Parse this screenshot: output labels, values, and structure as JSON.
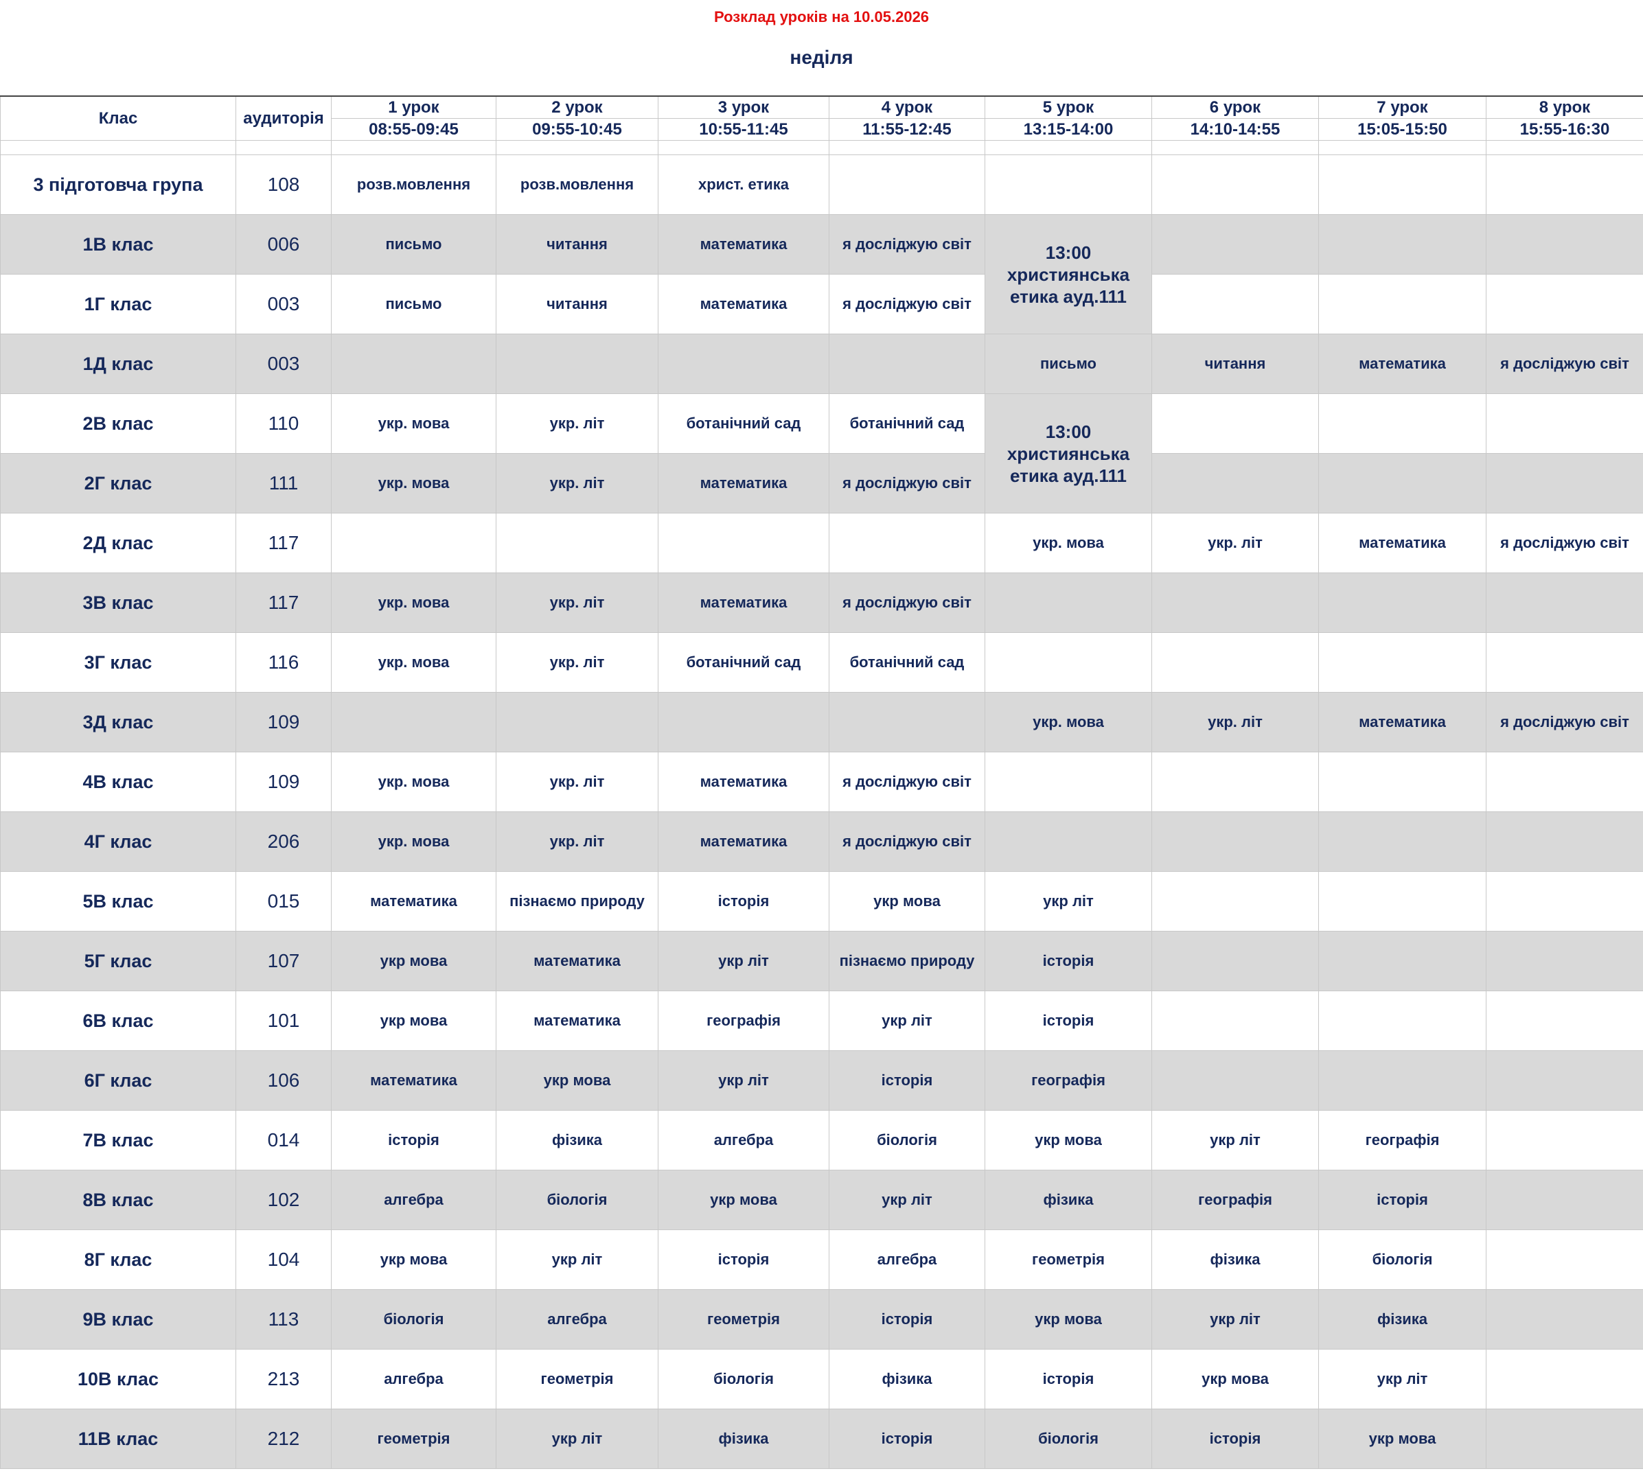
{
  "header": {
    "title": "Розклад уроків на 10.05.2026",
    "day": "неділя"
  },
  "table": {
    "class_header": "Клас",
    "room_header": "аудиторія",
    "columns": [
      {
        "name": "1 урок",
        "time": "08:55-09:45"
      },
      {
        "name": "2 урок",
        "time": "09:55-10:45"
      },
      {
        "name": "3 урок",
        "time": "10:55-11:45"
      },
      {
        "name": "4 урок",
        "time": "11:55-12:45"
      },
      {
        "name": "5 урок",
        "time": "13:15-14:00"
      },
      {
        "name": "6 урок",
        "time": "14:10-14:55"
      },
      {
        "name": "7 урок",
        "time": "15:05-15:50"
      },
      {
        "name": "8 урок",
        "time": "15:55-16:30"
      }
    ],
    "rows": [
      {
        "class": "3 підготовча група",
        "room": "108",
        "shaded": false,
        "lessons": [
          "розв.мовлення",
          "розв.мовлення",
          "христ. етика",
          null,
          null,
          null,
          null,
          null
        ]
      },
      {
        "class": "1В клас",
        "room": "006",
        "shaded": true,
        "lessons": [
          "письмо",
          "читання",
          "математика",
          "я досліджую світ",
          {
            "text": "13:00 християнська етика ауд.111",
            "rowspan": 2
          },
          null,
          null,
          null
        ]
      },
      {
        "class": "1Г клас",
        "room": "003",
        "shaded": false,
        "lessons": [
          "письмо",
          "читання",
          "математика",
          "я досліджую світ",
          null,
          null,
          null,
          null
        ]
      },
      {
        "class": "1Д клас",
        "room": "003",
        "shaded": true,
        "lessons": [
          null,
          null,
          null,
          null,
          "письмо",
          "читання",
          "математика",
          "я досліджую світ"
        ]
      },
      {
        "class": "2В клас",
        "room": "110",
        "shaded": false,
        "lessons": [
          "укр. мова",
          "укр. літ",
          "ботанічний сад",
          "ботанічний сад",
          {
            "text": "13:00 християнська етика ауд.111",
            "rowspan": 2
          },
          null,
          null,
          null
        ]
      },
      {
        "class": "2Г клас",
        "room": "111",
        "shaded": true,
        "lessons": [
          "укр. мова",
          "укр. літ",
          "математика",
          "я досліджую світ",
          null,
          null,
          null,
          null
        ]
      },
      {
        "class": "2Д клас",
        "room": "117",
        "shaded": false,
        "lessons": [
          null,
          null,
          null,
          null,
          "укр. мова",
          "укр. літ",
          "математика",
          "я досліджую світ"
        ]
      },
      {
        "class": "3В клас",
        "room": "117",
        "shaded": true,
        "lessons": [
          "укр. мова",
          "укр. літ",
          "математика",
          "я досліджую світ",
          null,
          null,
          null,
          null
        ]
      },
      {
        "class": "3Г клас",
        "room": "116",
        "shaded": false,
        "lessons": [
          "укр. мова",
          "укр. літ",
          "ботанічний сад",
          "ботанічний сад",
          null,
          null,
          null,
          null
        ]
      },
      {
        "class": "3Д клас",
        "room": "109",
        "shaded": true,
        "lessons": [
          null,
          null,
          null,
          null,
          "укр. мова",
          "укр. літ",
          "математика",
          "я досліджую світ"
        ]
      },
      {
        "class": "4В клас",
        "room": "109",
        "shaded": false,
        "lessons": [
          "укр. мова",
          "укр. літ",
          "математика",
          "я досліджую світ",
          null,
          null,
          null,
          null
        ]
      },
      {
        "class": "4Г клас",
        "room": "206",
        "shaded": true,
        "lessons": [
          "укр. мова",
          "укр. літ",
          "математика",
          "я досліджую світ",
          null,
          null,
          null,
          null
        ]
      },
      {
        "class": "5В клас",
        "room": "015",
        "shaded": false,
        "lessons": [
          "математика",
          "пізнаємо природу",
          "історія",
          "укр мова",
          "укр літ",
          null,
          null,
          null
        ]
      },
      {
        "class": "5Г клас",
        "room": "107",
        "shaded": true,
        "lessons": [
          "укр мова",
          "математика",
          "укр літ",
          "пізнаємо природу",
          "історія",
          null,
          null,
          null
        ]
      },
      {
        "class": "6В клас",
        "room": "101",
        "shaded": false,
        "lessons": [
          "укр мова",
          "математика",
          "географія",
          "укр літ",
          "історія",
          null,
          null,
          null
        ]
      },
      {
        "class": "6Г клас",
        "room": "106",
        "shaded": true,
        "lessons": [
          "математика",
          "укр мова",
          "укр літ",
          "історія",
          "географія",
          null,
          null,
          null
        ]
      },
      {
        "class": "7В клас",
        "room": "014",
        "shaded": false,
        "lessons": [
          "історія",
          "фізика",
          "алгебра",
          "біологія",
          "укр мова",
          "укр літ",
          "географія",
          null
        ]
      },
      {
        "class": "8В клас",
        "room": "102",
        "shaded": true,
        "lessons": [
          "алгебра",
          "біологія",
          "укр мова",
          "укр літ",
          "фізика",
          "географія",
          "історія",
          null
        ]
      },
      {
        "class": "8Г клас",
        "room": "104",
        "shaded": false,
        "lessons": [
          "укр мова",
          "укр літ",
          "історія",
          "алгебра",
          "геометрія",
          "фізика",
          "біологія",
          null
        ]
      },
      {
        "class": "9В клас",
        "room": "113",
        "shaded": true,
        "lessons": [
          "біологія",
          "алгебра",
          "геометрія",
          "історія",
          "укр мова",
          "укр літ",
          "фізика",
          null
        ]
      },
      {
        "class": "10В клас",
        "room": "213",
        "shaded": false,
        "lessons": [
          "алгебра",
          "геометрія",
          "біологія",
          "фізика",
          "історія",
          "укр мова",
          "укр літ",
          null
        ]
      },
      {
        "class": "11В клас",
        "room": "212",
        "shaded": true,
        "lessons": [
          "геометрія",
          "укр літ",
          "фізика",
          "історія",
          "біологія",
          "історія",
          "укр мова",
          null
        ]
      }
    ]
  }
}
